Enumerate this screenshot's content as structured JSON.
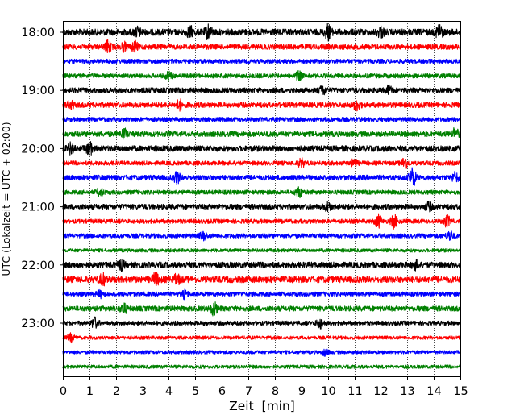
{
  "chart_data": {
    "type": "line",
    "subtype": "helicorder",
    "title": "",
    "xlabel": "Zeit  [min]",
    "ylabel": "UTC (Lokalzeit = UTC + 02:00)",
    "xlim": [
      0,
      15
    ],
    "x_ticks": [
      "0",
      "1",
      "2",
      "3",
      "4",
      "5",
      "6",
      "7",
      "8",
      "9",
      "10",
      "11",
      "12",
      "13",
      "14",
      "15"
    ],
    "y_ticks": [
      "18:00",
      "19:00",
      "20:00",
      "21:00",
      "22:00",
      "23:00"
    ],
    "grid": "vertical dotted lines at each minute",
    "legend": "none",
    "color_cycle": [
      "#000000",
      "#ff0000",
      "#0000ff",
      "#008000"
    ],
    "series": [
      {
        "start": "18:00",
        "color": "#000000",
        "amplitude": 0.22,
        "events": [
          [
            5.5,
            0.45
          ],
          [
            10.0,
            0.45
          ],
          [
            14.2,
            0.45
          ],
          [
            4.8,
            0.3
          ],
          [
            2.8,
            0.3
          ],
          [
            12.0,
            0.3
          ]
        ]
      },
      {
        "start": "18:15",
        "color": "#ff0000",
        "amplitude": 0.18,
        "events": [
          [
            1.7,
            0.35
          ],
          [
            2.7,
            0.3
          ],
          [
            2.3,
            0.25
          ]
        ]
      },
      {
        "start": "18:30",
        "color": "#0000ff",
        "amplitude": 0.15,
        "events": []
      },
      {
        "start": "18:45",
        "color": "#008000",
        "amplitude": 0.15,
        "events": [
          [
            4.0,
            0.25
          ],
          [
            8.9,
            0.25
          ]
        ]
      },
      {
        "start": "19:00",
        "color": "#000000",
        "amplitude": 0.18,
        "events": [
          [
            9.8,
            0.25
          ],
          [
            12.3,
            0.25
          ]
        ]
      },
      {
        "start": "19:15",
        "color": "#ff0000",
        "amplitude": 0.18,
        "events": [
          [
            0.3,
            0.25
          ],
          [
            4.4,
            0.3
          ],
          [
            11.1,
            0.3
          ]
        ]
      },
      {
        "start": "19:30",
        "color": "#0000ff",
        "amplitude": 0.15,
        "events": []
      },
      {
        "start": "19:45",
        "color": "#008000",
        "amplitude": 0.18,
        "events": [
          [
            2.3,
            0.3
          ],
          [
            14.8,
            0.35
          ]
        ]
      },
      {
        "start": "20:00",
        "color": "#000000",
        "amplitude": 0.2,
        "events": [
          [
            0.3,
            0.3
          ],
          [
            1.0,
            0.35
          ]
        ]
      },
      {
        "start": "20:15",
        "color": "#ff0000",
        "amplitude": 0.15,
        "events": [
          [
            9.0,
            0.25
          ],
          [
            11.0,
            0.25
          ],
          [
            12.9,
            0.35
          ]
        ]
      },
      {
        "start": "20:30",
        "color": "#0000ff",
        "amplitude": 0.18,
        "events": [
          [
            13.2,
            0.6
          ],
          [
            4.3,
            0.35
          ],
          [
            14.8,
            0.3
          ]
        ]
      },
      {
        "start": "20:45",
        "color": "#008000",
        "amplitude": 0.15,
        "events": [
          [
            1.4,
            0.25
          ],
          [
            8.9,
            0.3
          ]
        ]
      },
      {
        "start": "21:00",
        "color": "#000000",
        "amplitude": 0.18,
        "events": [
          [
            10.0,
            0.25
          ],
          [
            13.8,
            0.25
          ]
        ]
      },
      {
        "start": "21:15",
        "color": "#ff0000",
        "amplitude": 0.15,
        "events": [
          [
            11.9,
            0.4
          ],
          [
            12.5,
            0.4
          ],
          [
            14.5,
            0.35
          ]
        ]
      },
      {
        "start": "21:30",
        "color": "#0000ff",
        "amplitude": 0.15,
        "events": [
          [
            14.6,
            0.3
          ],
          [
            5.3,
            0.25
          ]
        ]
      },
      {
        "start": "21:45",
        "color": "#008000",
        "amplitude": 0.12,
        "events": []
      },
      {
        "start": "22:00",
        "color": "#000000",
        "amplitude": 0.2,
        "events": [
          [
            13.3,
            0.25
          ],
          [
            2.2,
            0.25
          ]
        ]
      },
      {
        "start": "22:15",
        "color": "#ff0000",
        "amplitude": 0.22,
        "events": [
          [
            1.5,
            0.3
          ],
          [
            3.5,
            0.35
          ],
          [
            4.3,
            0.3
          ]
        ]
      },
      {
        "start": "22:30",
        "color": "#0000ff",
        "amplitude": 0.15,
        "events": [
          [
            4.6,
            0.25
          ],
          [
            1.4,
            0.2
          ]
        ]
      },
      {
        "start": "22:45",
        "color": "#008000",
        "amplitude": 0.18,
        "events": [
          [
            2.3,
            0.3
          ],
          [
            5.7,
            0.4
          ]
        ]
      },
      {
        "start": "23:00",
        "color": "#000000",
        "amplitude": 0.15,
        "events": [
          [
            1.2,
            0.35
          ],
          [
            9.7,
            0.3
          ]
        ]
      },
      {
        "start": "23:15",
        "color": "#ff0000",
        "amplitude": 0.12,
        "events": [
          [
            0.3,
            0.25
          ]
        ]
      },
      {
        "start": "23:30",
        "color": "#0000ff",
        "amplitude": 0.12,
        "events": [
          [
            9.9,
            0.2
          ]
        ]
      },
      {
        "start": "23:45",
        "color": "#008000",
        "amplitude": 0.12,
        "events": []
      }
    ]
  }
}
